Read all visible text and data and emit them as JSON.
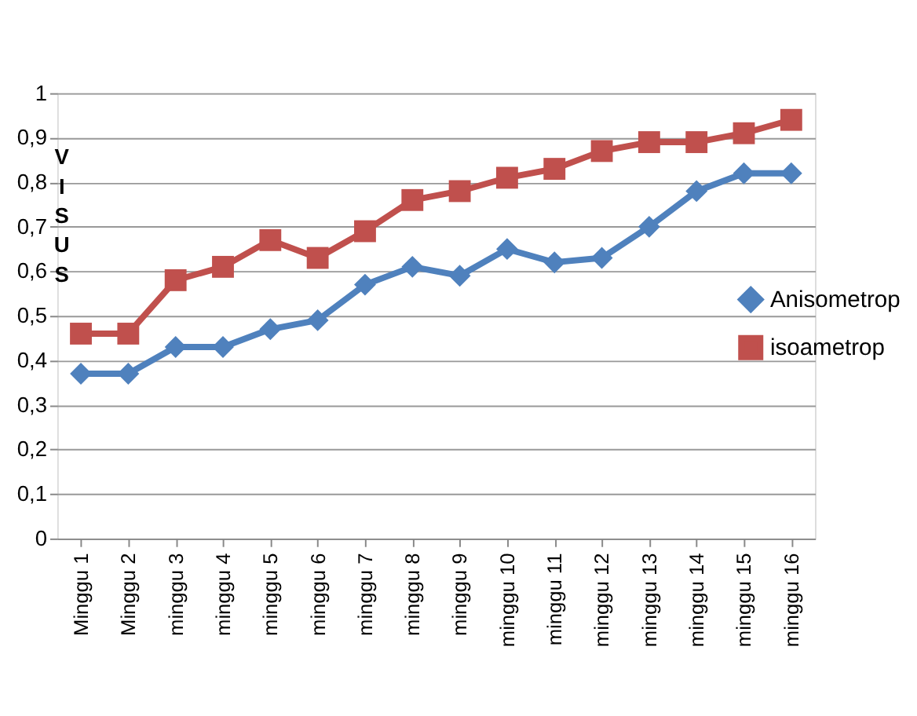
{
  "chart_data": {
    "type": "line",
    "ylabel": "VISUS",
    "categories": [
      "Minggu 1",
      "Minggu 2",
      "minggu 3",
      "minggu 4",
      "minggu 5",
      "minggu 6",
      "minggu 7",
      "minggu 8",
      "minggu 9",
      "minggu 10",
      "minggu 11",
      "minggu 12",
      "minggu 13",
      "minggu 14",
      "minggu 15",
      "minggu 16"
    ],
    "series": [
      {
        "name": "Anisometrop",
        "color": "#4f81bd",
        "marker": "diamond",
        "values": [
          0.37,
          0.37,
          0.43,
          0.43,
          0.47,
          0.49,
          0.57,
          0.61,
          0.59,
          0.65,
          0.62,
          0.63,
          0.7,
          0.78,
          0.82,
          0.82
        ]
      },
      {
        "name": "isoametrop",
        "color": "#c0504d",
        "marker": "square",
        "values": [
          0.46,
          0.46,
          0.58,
          0.61,
          0.67,
          0.63,
          0.69,
          0.76,
          0.78,
          0.81,
          0.83,
          0.87,
          0.89,
          0.89,
          0.91,
          0.94
        ]
      }
    ],
    "ylim": [
      0,
      1
    ],
    "yticks": [
      0,
      {
        "value": 0.1,
        "label": "0,1"
      },
      {
        "value": 0.2,
        "label": "0,2"
      },
      {
        "value": 0.3,
        "label": "0,3"
      },
      {
        "value": 0.4,
        "label": "0,4"
      },
      {
        "value": 0.5,
        "label": "0,5"
      },
      {
        "value": 0.6,
        "label": "0,6"
      },
      {
        "value": 0.7,
        "label": "0,7"
      },
      {
        "value": 0.8,
        "label": "0,8"
      },
      {
        "value": 0.9,
        "label": "0,9"
      },
      1
    ],
    "grid": "y",
    "legend": "right",
    "line_style": "solid"
  }
}
